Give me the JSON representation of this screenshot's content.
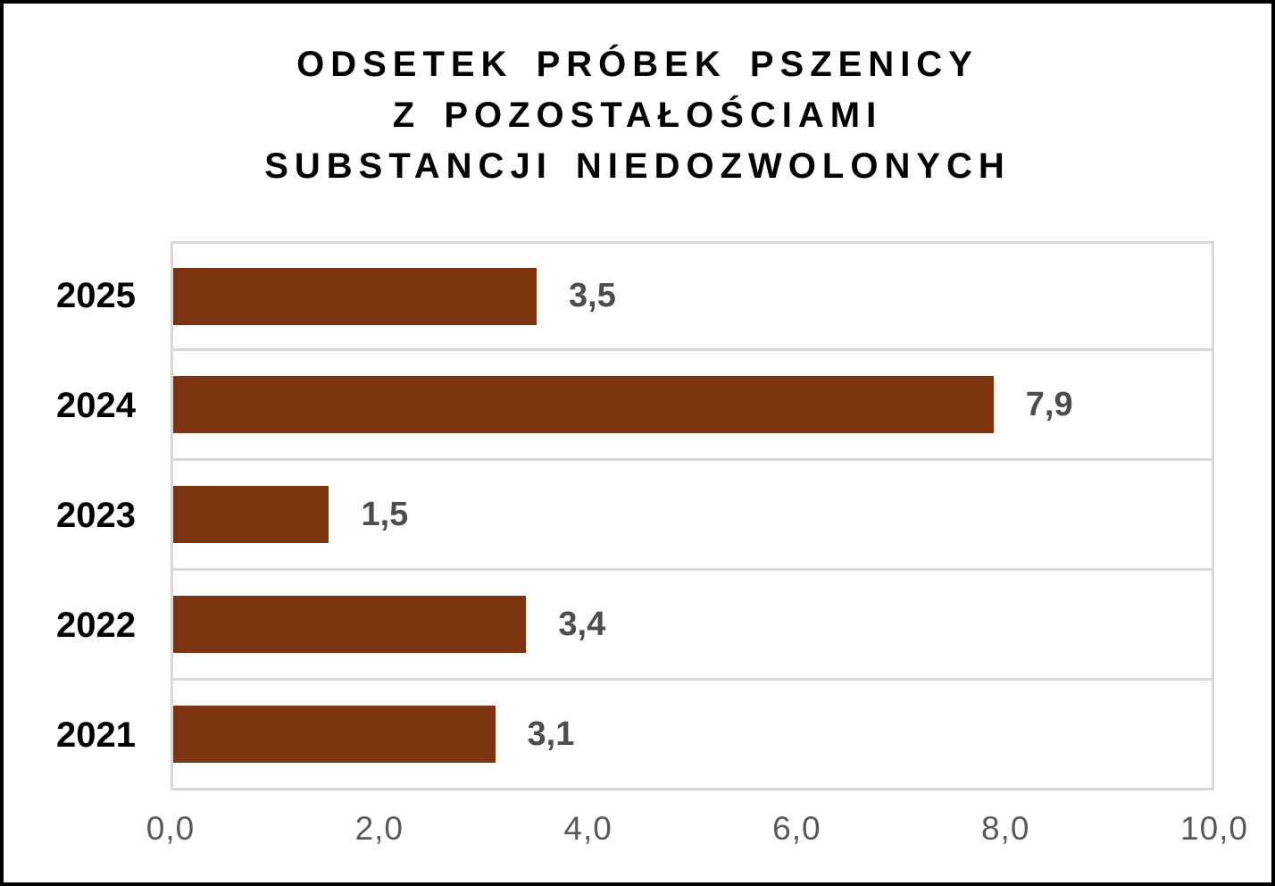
{
  "title": {
    "lines": [
      "ODSETEK PRÓBEK PSZENICY",
      "Z POZOSTAŁOŚCIAMI",
      "SUBSTANCJI NIEDOZWOLONYCH"
    ]
  },
  "chart_data": {
    "type": "bar",
    "orientation": "horizontal",
    "title": "ODSETEK PRÓBEK PSZENICY Z POZOSTAŁOŚCIAMI SUBSTANCJI NIEDOZWOLONYCH",
    "categories": [
      "2025",
      "2024",
      "2023",
      "2022",
      "2021"
    ],
    "values": [
      3.5,
      7.9,
      1.5,
      3.4,
      3.1
    ],
    "value_labels": [
      "3,5",
      "7,9",
      "1,5",
      "3,4",
      "3,1"
    ],
    "xlabel": "",
    "ylabel": "",
    "xlim": [
      0,
      10
    ],
    "x_ticks": [
      0,
      2,
      4,
      6,
      8,
      10
    ],
    "x_tick_labels": [
      "0,0",
      "2,0",
      "4,0",
      "6,0",
      "8,0",
      "10,0"
    ],
    "grid": "horizontal band separators, plot area outlined",
    "legend": "none",
    "colors": {
      "bar": "#7D3410",
      "gridline": "#D8D8D8",
      "tick_label": "#595959",
      "value_label": "#4D4D4D",
      "category_label": "#000000",
      "title": "#000000",
      "page_border": "#000000",
      "background": "#FFFFFF"
    }
  }
}
